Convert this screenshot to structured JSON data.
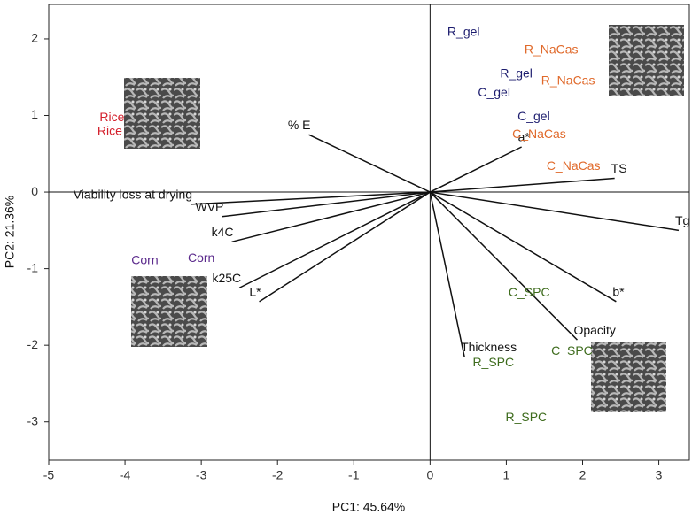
{
  "chart_data": {
    "type": "scatter",
    "x_label": "PC1: 45.64%",
    "y_label": "PC2: 21.36%",
    "xlim": [
      -5,
      3.4
    ],
    "ylim": [
      -3.5,
      2.45
    ],
    "xticks": [
      -5,
      -4,
      -3,
      -2,
      -1,
      0,
      1,
      2,
      3
    ],
    "yticks": [
      -3,
      -2,
      -1,
      0,
      1,
      2
    ],
    "samples": {
      "labels": [
        "R_gel",
        "R_gel",
        "C_gel",
        "C_gel",
        "R_NaCas",
        "R_NaCas",
        "C_NaCas",
        "C_NaCas",
        "C_SPC",
        "C_SPC",
        "R_SPC",
        "R_SPC",
        "Rice",
        "Rice",
        "Corn",
        "Corn"
      ],
      "x": [
        0.44,
        1.13,
        0.84,
        1.36,
        1.59,
        1.81,
        1.43,
        1.88,
        1.3,
        1.86,
        0.83,
        1.26,
        -4.17,
        -4.2,
        -3.74,
        -3.0
      ],
      "y": [
        2.08,
        1.54,
        1.29,
        0.98,
        1.85,
        1.45,
        0.75,
        0.33,
        -1.32,
        -2.08,
        -2.23,
        -2.95,
        0.97,
        0.79,
        -0.9,
        -0.87
      ],
      "colors": [
        "#1c1c6e",
        "#1c1c6e",
        "#1c1c6e",
        "#1c1c6e",
        "#e0692a",
        "#e0692a",
        "#e0692a",
        "#e0692a",
        "#3d6b1c",
        "#3d6b1c",
        "#3d6b1c",
        "#3d6b1c",
        "#d4202c",
        "#d4202c",
        "#5b2a8c",
        "#5b2a8c"
      ]
    },
    "loadings": {
      "labels": [
        "% E",
        "Viability loss at drying",
        "WVP",
        "k4C",
        "k25C",
        "L*",
        "a*",
        "TS",
        "Tg",
        "b*",
        "Opacity",
        "Thickness"
      ],
      "x": [
        -1.59,
        -3.14,
        -2.73,
        -2.6,
        -2.5,
        -2.24,
        1.2,
        2.42,
        3.26,
        2.44,
        1.93,
        0.45
      ],
      "y": [
        0.75,
        -0.16,
        -0.32,
        -0.65,
        -1.25,
        -1.43,
        0.59,
        0.18,
        -0.5,
        -1.43,
        -1.93,
        -2.15
      ],
      "color": "#111111"
    }
  }
}
